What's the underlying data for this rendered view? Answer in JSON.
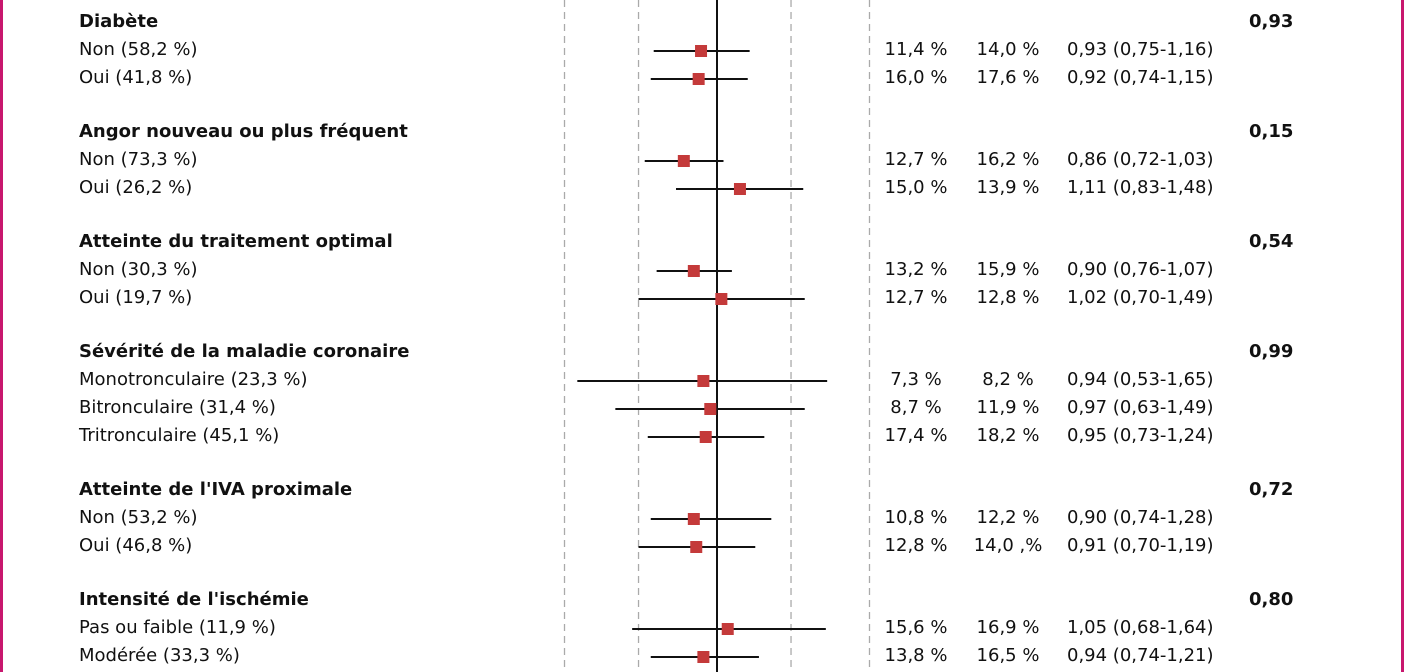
{
  "colors": {
    "frame": "#c8176e",
    "marker": "#c43a3a",
    "ci_line": "#111111",
    "ref_line": "#111111",
    "dashed": "#aaaaaa"
  },
  "chart_data": {
    "type": "forest",
    "x_scale": "log",
    "reference_value": 1.0,
    "guide_values": [
      0.5,
      0.7,
      1.4,
      2.0
    ],
    "groups": [
      {
        "name": "Diabète",
        "p": "0,93",
        "rows": [
          {
            "label": "Non (58,2 %)",
            "col1": "11,4 %",
            "col2": "14,0 %",
            "ci": "0,93 (0,75-1,16)",
            "hr": 0.93,
            "lo": 0.75,
            "hi": 1.16
          },
          {
            "label": "Oui (41,8 %)",
            "col1": "16,0 %",
            "col2": "17,6 %",
            "ci": "0,92 (0,74-1,15)",
            "hr": 0.92,
            "lo": 0.74,
            "hi": 1.15
          }
        ]
      },
      {
        "name": "Angor nouveau ou plus fréquent",
        "p": "0,15",
        "rows": [
          {
            "label": "Non (73,3 %)",
            "col1": "12,7 %",
            "col2": "16,2 %",
            "ci": "0,86 (0,72-1,03)",
            "hr": 0.86,
            "lo": 0.72,
            "hi": 1.03
          },
          {
            "label": "Oui (26,2 %)",
            "col1": "15,0 %",
            "col2": "13,9 %",
            "ci": "1,11 (0,83-1,48)",
            "hr": 1.11,
            "lo": 0.83,
            "hi": 1.48
          }
        ]
      },
      {
        "name": "Atteinte du traitement optimal",
        "p": "0,54",
        "rows": [
          {
            "label": "Non (30,3 %)",
            "col1": "13,2 %",
            "col2": "15,9 %",
            "ci": "0,90 (0,76-1,07)",
            "hr": 0.9,
            "lo": 0.76,
            "hi": 1.07
          },
          {
            "label": "Oui (19,7 %)",
            "col1": "12,7 %",
            "col2": "12,8 %",
            "ci": "1,02 (0,70-1,49)",
            "hr": 1.02,
            "lo": 0.7,
            "hi": 1.49
          }
        ]
      },
      {
        "name": "Sévérité de la maladie coronaire",
        "p": "0,99",
        "rows": [
          {
            "label": "Monotronculaire (23,3 %)",
            "col1": "7,3 %",
            "col2": "8,2 %",
            "ci": "0,94 (0,53-1,65)",
            "hr": 0.94,
            "lo": 0.53,
            "hi": 1.65
          },
          {
            "label": "Bitronculaire (31,4 %)",
            "col1": "8,7 %",
            "col2": "11,9 %",
            "ci": "0,97 (0,63-1,49)",
            "hr": 0.97,
            "lo": 0.63,
            "hi": 1.49
          },
          {
            "label": "Tritronculaire (45,1 %)",
            "col1": "17,4 %",
            "col2": "18,2 %",
            "ci": "0,95 (0,73-1,24)",
            "hr": 0.95,
            "lo": 0.73,
            "hi": 1.24
          }
        ]
      },
      {
        "name": "Atteinte de l'IVA proximale",
        "p": "0,72",
        "rows": [
          {
            "label": "Non (53,2 %)",
            "col1": "10,8 %",
            "col2": "12,2 %",
            "ci": "0,90 (0,74-1,28)",
            "hr": 0.9,
            "lo": 0.74,
            "hi": 1.28
          },
          {
            "label": "Oui (46,8 %)",
            "col1": "12,8 %",
            "col2": "14,0 ,%",
            "ci": "0,91 (0,70-1,19)",
            "hr": 0.91,
            "lo": 0.7,
            "hi": 1.19
          }
        ]
      },
      {
        "name": "Intensité de l'ischémie",
        "p": "0,80",
        "rows": [
          {
            "label": "Pas ou faible (11,9 %)",
            "col1": "15,6 %",
            "col2": "16,9 %",
            "ci": "1,05 (0,68-1,64)",
            "hr": 1.05,
            "lo": 0.68,
            "hi": 1.64
          },
          {
            "label": "Modérée (33,3 %)",
            "col1": "13,8 %",
            "col2": "16,5 %",
            "ci": "0,94 (0,74-1,21)",
            "hr": 0.94,
            "lo": 0.74,
            "hi": 1.21
          }
        ]
      }
    ]
  }
}
